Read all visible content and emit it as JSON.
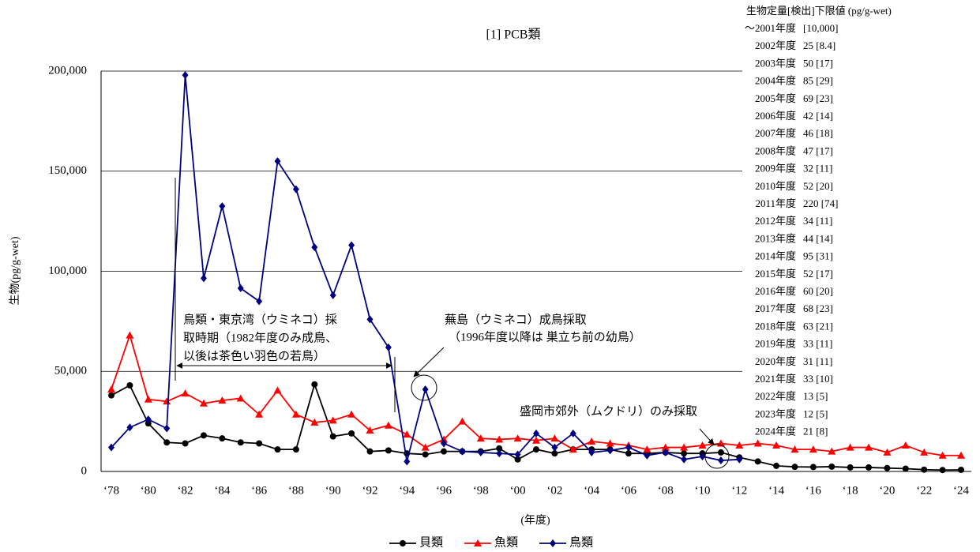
{
  "chart_data": {
    "type": "line",
    "title": "[1] PCB類",
    "y_label": "生物(pg/g-wet)",
    "x_label": "(年度)",
    "categories": [
      "‘78",
      null,
      "‘80",
      null,
      "‘82",
      null,
      "‘84",
      null,
      "‘86",
      null,
      "‘88",
      null,
      "‘90",
      null,
      "‘92",
      null,
      "‘94",
      null,
      "‘96",
      null,
      "‘98",
      null,
      "‘00",
      null,
      "‘02",
      null,
      "‘04",
      null,
      "‘06",
      null,
      "‘08",
      null,
      "‘10",
      null,
      "‘12",
      null,
      "‘14",
      null,
      "‘16",
      null,
      "‘18",
      null,
      "‘20",
      null,
      "‘22",
      null,
      "‘24"
    ],
    "ylim": [
      0,
      200000
    ],
    "yticks": [
      0,
      {
        "value": 50000,
        "label": "50,000"
      },
      {
        "value": 100000,
        "label": "100,000"
      },
      {
        "value": 150000,
        "label": "150,000"
      },
      {
        "value": 200000,
        "label": "200,000"
      }
    ],
    "grid": true,
    "legend": "bottom",
    "series": [
      {
        "name": "貝類",
        "color": "#000000",
        "marker": "circle",
        "values": [
          38000,
          43000,
          24000,
          14500,
          14000,
          18000,
          16500,
          14500,
          14000,
          11000,
          11000,
          43500,
          17500,
          19000,
          10000,
          10500,
          9000,
          8500,
          10000,
          10000,
          10000,
          11500,
          6000,
          11000,
          9000,
          11000,
          11000,
          11000,
          9000,
          9000,
          9500,
          9000,
          9000,
          9500,
          7000,
          5000,
          2800,
          2300,
          2200,
          2400,
          2000,
          2000,
          1700,
          1400,
          900,
          700,
          800
        ]
      },
      {
        "name": "魚類",
        "color": "#ff0000",
        "marker": "triangle",
        "values": [
          41000,
          68000,
          36000,
          35000,
          39000,
          34000,
          35500,
          36500,
          28500,
          40500,
          28500,
          24500,
          25500,
          28500,
          20500,
          23000,
          18500,
          12000,
          16000,
          25000,
          16500,
          16000,
          16500,
          15500,
          16500,
          11000,
          15000,
          14000,
          13000,
          11000,
          12000,
          12000,
          13000,
          14000,
          13000,
          14000,
          13000,
          11000,
          11000,
          10000,
          12000,
          12000,
          9500,
          13000,
          9500,
          8000,
          8000
        ]
      },
      {
        "name": "鳥類",
        "color": "#000080",
        "marker": "diamond",
        "values": [
          12000,
          22000,
          26000,
          21500,
          198000,
          96500,
          132500,
          91500,
          85000,
          155000,
          141000,
          112000,
          88000,
          113000,
          76000,
          62000,
          5000,
          41000,
          14000,
          10000,
          9500,
          9000,
          8500,
          19000,
          12000,
          19000,
          9500,
          10500,
          12000,
          8000,
          9500,
          6000,
          7500,
          5500,
          6000,
          null,
          null,
          null,
          null,
          null,
          null,
          null,
          null,
          null,
          null,
          null,
          null
        ]
      }
    ],
    "annotations": {
      "tokyo_bay": [
        "鳥類・東京湾（ウミネコ）採",
        "取時期（1982年度のみ成鳥、",
        "以後は茶色い羽色の若鳥）"
      ],
      "kabushima": [
        "蕪島（ウミネコ）成鳥採取",
        "（1996年度以降は 巣立ち前の幼鳥）"
      ],
      "morioka": "盛岡市郊外（ムクドリ）のみ採取"
    },
    "detection_limits": {
      "title": "生物定量[検出]下限値 (pg/g-wet)",
      "rows": [
        [
          "～2001年度",
          "[10,000]"
        ],
        [
          "2002年度",
          "25 [8.4]"
        ],
        [
          "2003年度",
          "50 [17]"
        ],
        [
          "2004年度",
          "85 [29]"
        ],
        [
          "2005年度",
          "69 [23]"
        ],
        [
          "2006年度",
          "42 [14]"
        ],
        [
          "2007年度",
          "46 [18]"
        ],
        [
          "2008年度",
          "47 [17]"
        ],
        [
          "2009年度",
          "32 [11]"
        ],
        [
          "2010年度",
          "52 [20]"
        ],
        [
          "2011年度",
          "220 [74]"
        ],
        [
          "2012年度",
          "34 [11]"
        ],
        [
          "2013年度",
          "44 [14]"
        ],
        [
          "2014年度",
          "95 [31]"
        ],
        [
          "2015年度",
          "52 [17]"
        ],
        [
          "2016年度",
          "60 [20]"
        ],
        [
          "2017年度",
          "68 [23]"
        ],
        [
          "2018年度",
          "63 [21]"
        ],
        [
          "2019年度",
          "33 [11]"
        ],
        [
          "2020年度",
          "31 [11]"
        ],
        [
          "2021年度",
          "33 [10]"
        ],
        [
          "2022年度",
          "13 [5]"
        ],
        [
          "2023年度",
          "12 [5]"
        ],
        [
          "2024年度",
          "21 [8]"
        ]
      ]
    }
  }
}
